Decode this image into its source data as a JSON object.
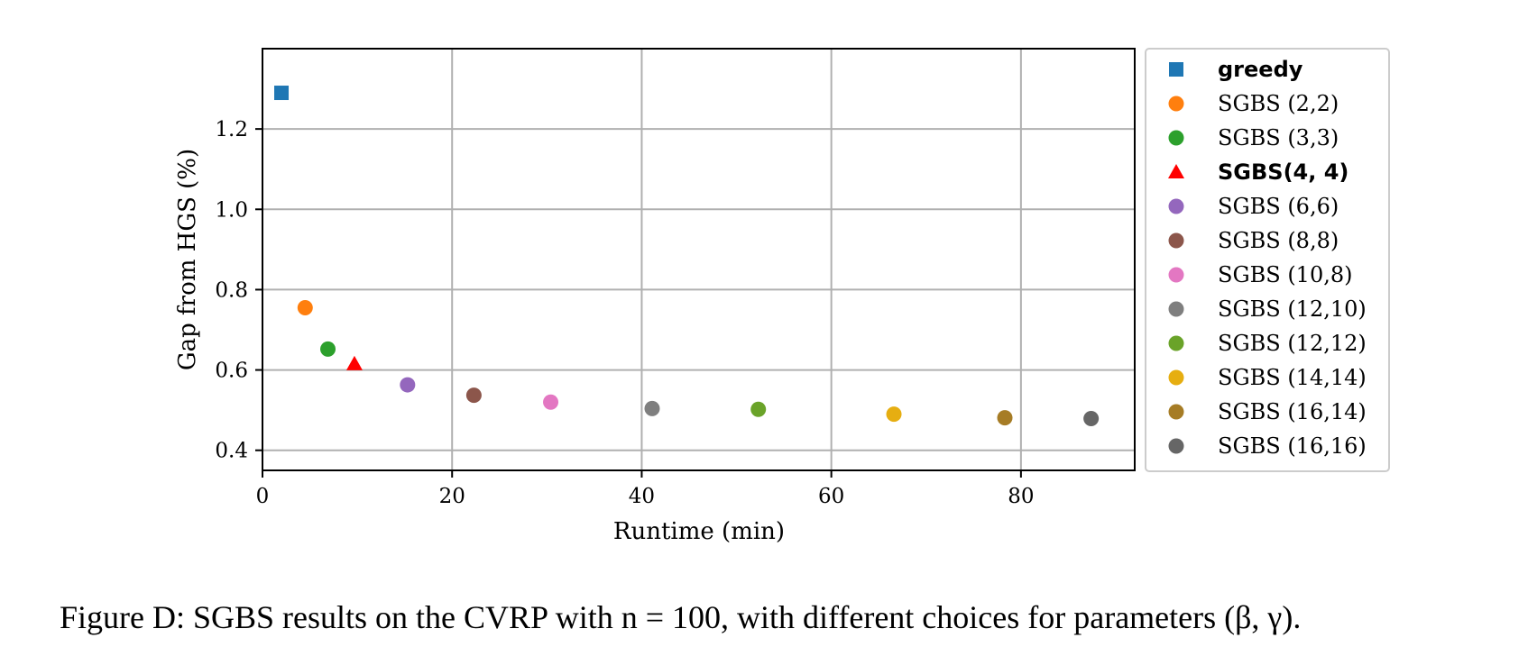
{
  "chart_data": {
    "type": "scatter",
    "xlabel": "Runtime (min)",
    "ylabel": "Gap from HGS (%)",
    "xlim": [
      0,
      92
    ],
    "ylim": [
      0.35,
      1.4
    ],
    "xticks": [
      0,
      20,
      40,
      60,
      80
    ],
    "yticks": [
      0.4,
      0.6,
      0.8,
      1.0,
      1.2
    ],
    "xtick_labels": [
      "0",
      "20",
      "40",
      "60",
      "80"
    ],
    "ytick_labels": [
      "0.4",
      "0.6",
      "0.8",
      "1.0",
      "1.2"
    ],
    "grid": true,
    "legend_position": "outside-right",
    "series": [
      {
        "name": "greedy",
        "x": 2.0,
        "y": 1.29,
        "color": "#1f77b4",
        "marker": "square",
        "bold": true
      },
      {
        "name": "SGBS (2,2)",
        "x": 4.5,
        "y": 0.755,
        "color": "#ff7f0e",
        "marker": "circle",
        "bold": false
      },
      {
        "name": "SGBS (3,3)",
        "x": 6.9,
        "y": 0.652,
        "color": "#2ca02c",
        "marker": "circle",
        "bold": false
      },
      {
        "name": "SGBS(4, 4)",
        "x": 9.7,
        "y": 0.615,
        "color": "#ff0000",
        "marker": "triangle",
        "bold": true
      },
      {
        "name": "SGBS (6,6)",
        "x": 15.3,
        "y": 0.563,
        "color": "#9467bd",
        "marker": "circle",
        "bold": false
      },
      {
        "name": "SGBS (8,8)",
        "x": 22.3,
        "y": 0.537,
        "color": "#8c564b",
        "marker": "circle",
        "bold": false
      },
      {
        "name": "SGBS (10,8)",
        "x": 30.4,
        "y": 0.52,
        "color": "#e377c2",
        "marker": "circle",
        "bold": false
      },
      {
        "name": "SGBS (12,10)",
        "x": 41.1,
        "y": 0.504,
        "color": "#7f7f7f",
        "marker": "circle",
        "bold": false
      },
      {
        "name": "SGBS (12,12)",
        "x": 52.3,
        "y": 0.502,
        "color": "#6aa329",
        "marker": "circle",
        "bold": false
      },
      {
        "name": "SGBS (14,14)",
        "x": 66.6,
        "y": 0.49,
        "color": "#e6ae11",
        "marker": "circle",
        "bold": false
      },
      {
        "name": "SGBS (16,14)",
        "x": 78.3,
        "y": 0.481,
        "color": "#a67c25",
        "marker": "circle",
        "bold": false
      },
      {
        "name": "SGBS (16,16)",
        "x": 87.4,
        "y": 0.479,
        "color": "#666666",
        "marker": "circle",
        "bold": false
      }
    ]
  },
  "caption": "Figure D: SGBS results on the CVRP with n = 100, with different choices for parameters (β, γ)."
}
